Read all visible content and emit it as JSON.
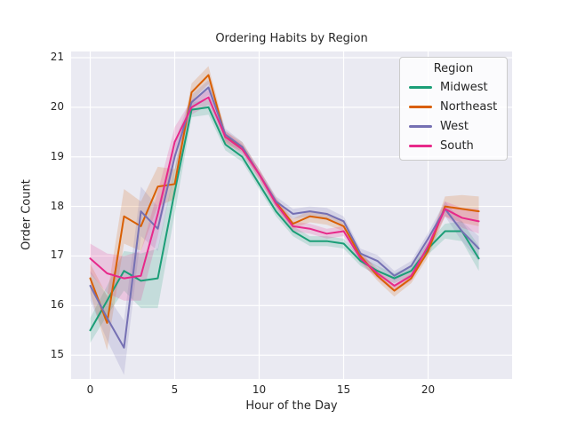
{
  "chart_data": {
    "type": "line",
    "title": "Ordering Habits by Region",
    "xlabel": "Hour of the Day",
    "ylabel": "Order Count",
    "legend_title": "Region",
    "legend_position": "upper right",
    "grid": true,
    "background": "#eaeaf2",
    "grid_color": "#ffffff",
    "text_color": "#262626",
    "x": [
      0,
      1,
      2,
      3,
      4,
      5,
      6,
      7,
      8,
      9,
      10,
      11,
      12,
      13,
      14,
      15,
      16,
      17,
      18,
      19,
      20,
      21,
      22,
      23
    ],
    "xticks": [
      0,
      5,
      10,
      15,
      20
    ],
    "yticks": [
      15,
      16,
      17,
      18,
      19,
      20,
      21
    ],
    "xlim": [
      -1.13,
      24.97
    ],
    "ylim": [
      14.52,
      21.125
    ],
    "series": [
      {
        "name": "Midwest",
        "color": "#1b9e77",
        "values": [
          15.5,
          16.1,
          16.7,
          16.5,
          16.55,
          18.3,
          19.95,
          20.0,
          19.25,
          19.0,
          18.45,
          17.9,
          17.5,
          17.3,
          17.3,
          17.25,
          16.9,
          16.7,
          16.55,
          16.7,
          17.15,
          17.5,
          17.5,
          16.95
        ],
        "ci": [
          0.25,
          0.3,
          0.4,
          0.55,
          0.6,
          0.45,
          0.15,
          0.15,
          0.12,
          0.1,
          0.1,
          0.1,
          0.1,
          0.1,
          0.1,
          0.1,
          0.1,
          0.1,
          0.1,
          0.1,
          0.12,
          0.15,
          0.2,
          0.25
        ]
      },
      {
        "name": "Northeast",
        "color": "#d95f02",
        "values": [
          16.55,
          15.65,
          17.8,
          17.6,
          18.4,
          18.45,
          20.3,
          20.65,
          19.4,
          19.2,
          18.65,
          18.08,
          17.65,
          17.8,
          17.75,
          17.6,
          17.0,
          16.6,
          16.3,
          16.55,
          17.1,
          18.0,
          17.95,
          17.9
        ],
        "ci": [
          0.3,
          0.55,
          0.55,
          0.5,
          0.4,
          0.3,
          0.18,
          0.18,
          0.12,
          0.1,
          0.1,
          0.1,
          0.1,
          0.12,
          0.12,
          0.1,
          0.1,
          0.1,
          0.12,
          0.1,
          0.12,
          0.2,
          0.28,
          0.3
        ]
      },
      {
        "name": "West",
        "color": "#7570b3",
        "values": [
          16.4,
          15.75,
          15.15,
          17.9,
          17.55,
          19.0,
          20.1,
          20.4,
          19.45,
          19.2,
          18.65,
          18.1,
          17.85,
          17.9,
          17.85,
          17.7,
          17.05,
          16.9,
          16.6,
          16.8,
          17.35,
          17.95,
          17.5,
          17.15
        ],
        "ci": [
          0.3,
          0.45,
          0.55,
          0.5,
          0.45,
          0.3,
          0.15,
          0.15,
          0.12,
          0.1,
          0.1,
          0.1,
          0.1,
          0.1,
          0.12,
          0.1,
          0.1,
          0.12,
          0.1,
          0.1,
          0.12,
          0.15,
          0.2,
          0.25
        ]
      },
      {
        "name": "South",
        "color": "#e7298a",
        "values": [
          16.95,
          16.65,
          16.55,
          16.6,
          17.85,
          19.3,
          20.0,
          20.2,
          19.4,
          19.15,
          18.65,
          18.05,
          17.6,
          17.55,
          17.45,
          17.5,
          16.95,
          16.65,
          16.4,
          16.6,
          17.2,
          17.95,
          17.77,
          17.7
        ],
        "ci": [
          0.3,
          0.4,
          0.45,
          0.5,
          0.45,
          0.3,
          0.15,
          0.15,
          0.12,
          0.1,
          0.1,
          0.1,
          0.1,
          0.1,
          0.1,
          0.1,
          0.1,
          0.1,
          0.12,
          0.1,
          0.12,
          0.15,
          0.2,
          0.25
        ]
      }
    ]
  }
}
